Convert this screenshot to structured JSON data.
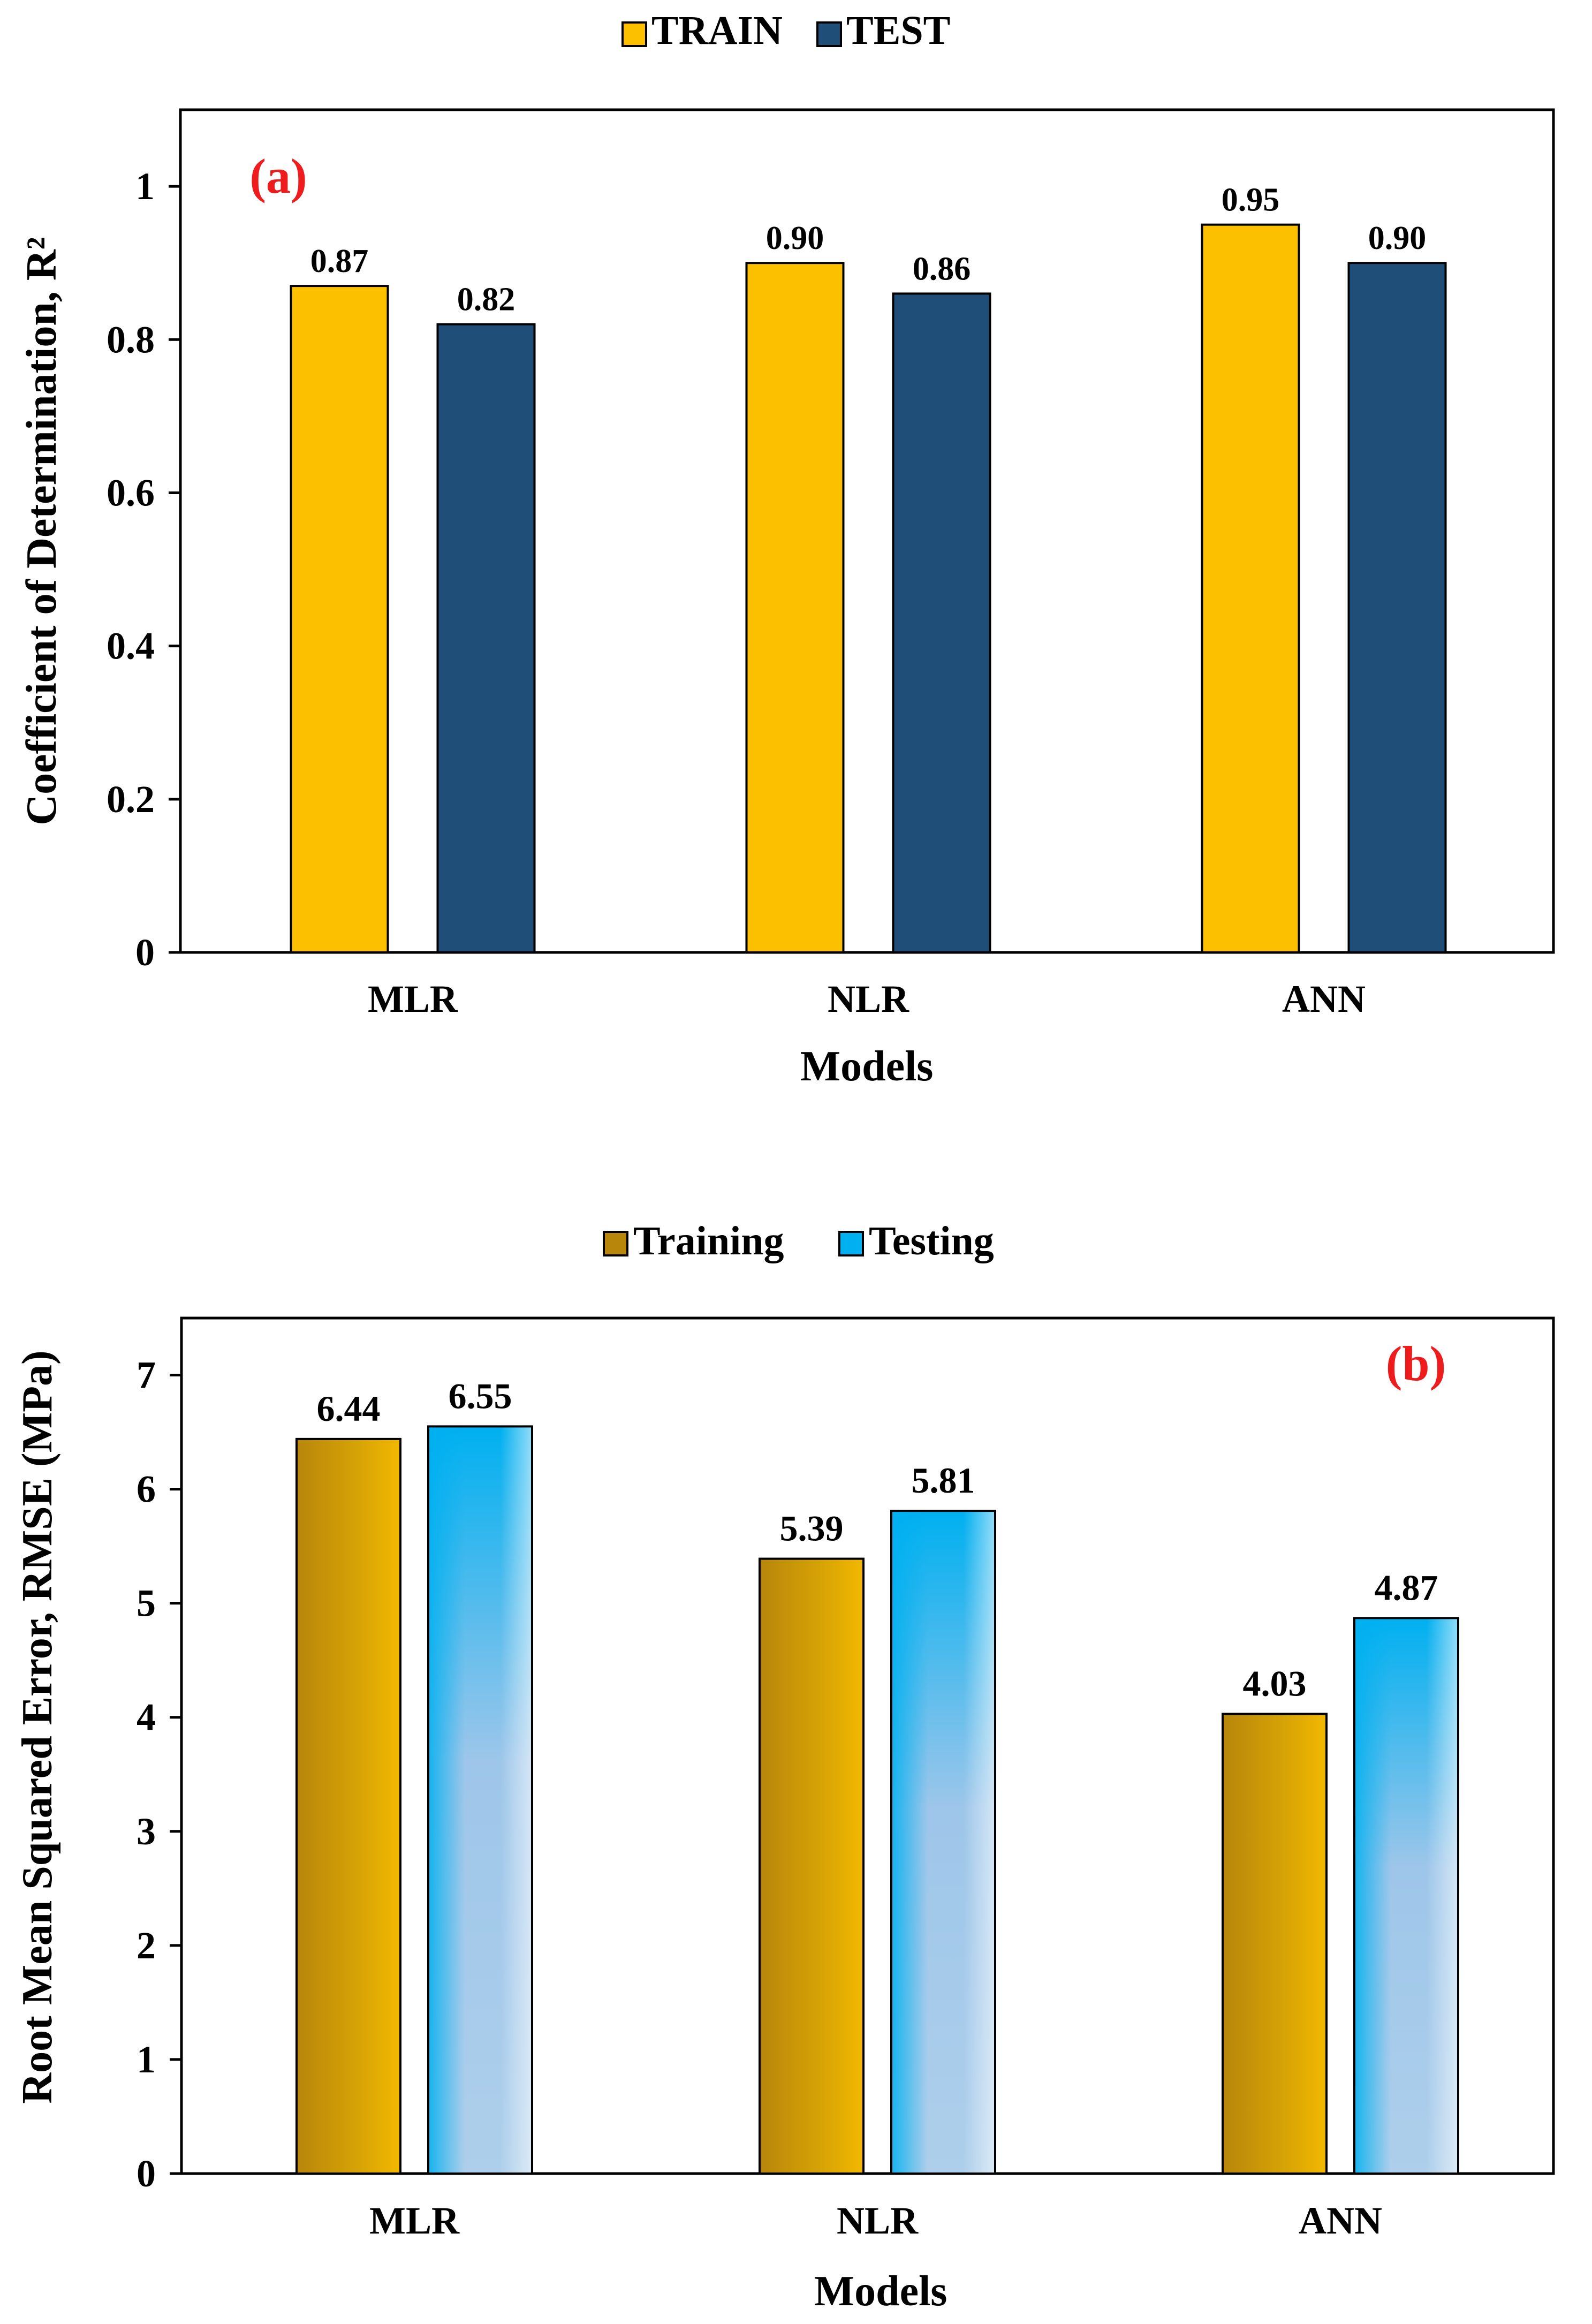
{
  "chart_data": [
    {
      "type": "bar",
      "panel_label": "(a)",
      "panel_label_color": "#ee1c1c",
      "categories": [
        "MLR",
        "NLR",
        "ANN"
      ],
      "series": [
        {
          "name": "TRAIN",
          "values": [
            0.87,
            0.9,
            0.95
          ],
          "labels": [
            "0.87",
            "0.90",
            "0.95"
          ],
          "color": "#fcc000"
        },
        {
          "name": "TEST",
          "values": [
            0.82,
            0.86,
            0.9
          ],
          "labels": [
            "0.82",
            "0.86",
            "0.90"
          ],
          "color": "#1f4e78"
        }
      ],
      "xlabel": "Models",
      "ylabel": "Coefficient of Determination, R²",
      "ylim": [
        0,
        1.1
      ],
      "yticks": [
        0,
        0.2,
        0.4,
        0.6,
        0.8,
        1
      ],
      "ytick_labels": [
        "0",
        "0.2",
        "0.4",
        "0.6",
        "0.8",
        "1"
      ],
      "grid": false,
      "legend": "top-center"
    },
    {
      "type": "bar",
      "panel_label": "(b)",
      "panel_label_color": "#ee1c1c",
      "categories": [
        "MLR",
        "NLR",
        "ANN"
      ],
      "series": [
        {
          "name": "Training",
          "values": [
            6.44,
            5.39,
            4.03
          ],
          "labels": [
            "6.44",
            "5.39",
            "4.03"
          ],
          "color": "#b8860b"
        },
        {
          "name": "Testing",
          "values": [
            6.55,
            5.81,
            4.87
          ],
          "labels": [
            "6.55",
            "5.81",
            "4.87"
          ],
          "color": "#00b0f0"
        }
      ],
      "xlabel": "Models",
      "ylabel": "Root Mean Squared Error, RMSE (MPa)",
      "ylim": [
        0,
        7.5
      ],
      "yticks": [
        0,
        1,
        2,
        3,
        4,
        5,
        6,
        7
      ],
      "ytick_labels": [
        "0",
        "1",
        "2",
        "3",
        "4",
        "5",
        "6",
        "7"
      ],
      "grid": false,
      "legend": "top-center"
    }
  ]
}
